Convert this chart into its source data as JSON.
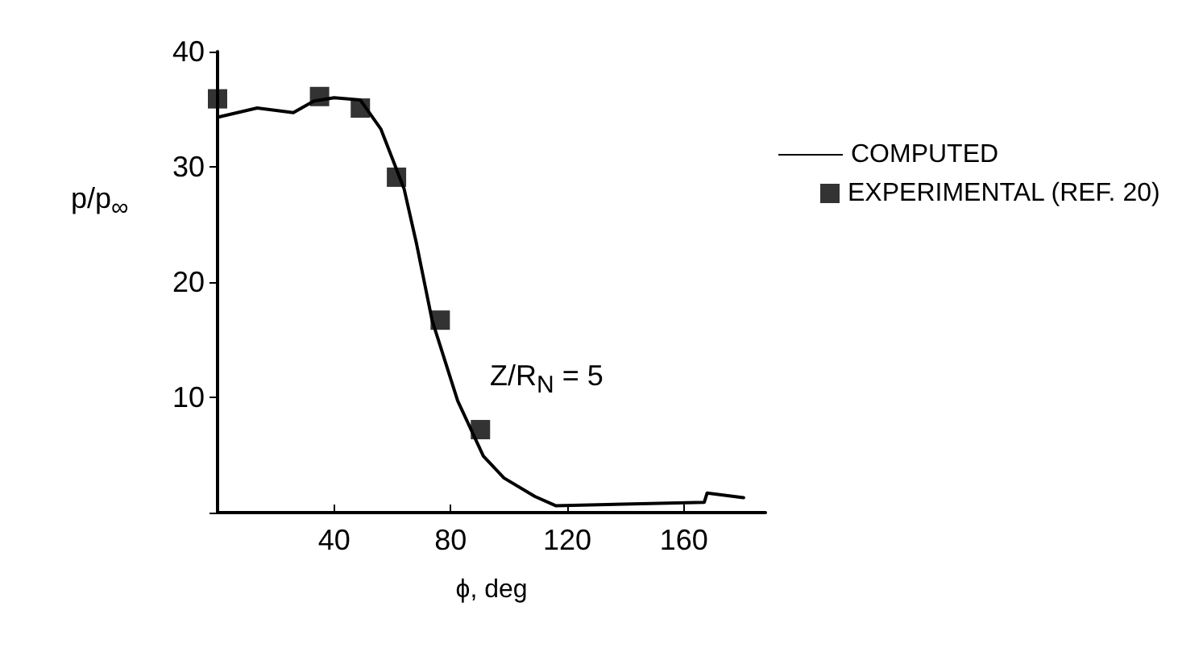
{
  "chart_data": {
    "type": "line",
    "xlabel": "ϕ, deg",
    "ylabel": "p/p$_{∞}$",
    "xlim": [
      0,
      188
    ],
    "ylim": [
      0,
      40
    ],
    "xticks": [
      {
        "value": 0,
        "label": null
      },
      40,
      80,
      120,
      160
    ],
    "yticks": [
      {
        "value": 0,
        "label": null
      },
      10,
      20,
      30,
      40
    ],
    "series": [
      {
        "name": "COMPUTED",
        "color": "#000000",
        "marker": "none",
        "line_style": "solid",
        "x": [
          0,
          13.6,
          26,
          33,
          40,
          49,
          56,
          64,
          68.3,
          73.6,
          82.4,
          91.2,
          98.3,
          108.9,
          116,
          167,
          168,
          180.5
        ],
        "values": [
          34.3,
          35.1,
          34.7,
          35.7,
          36,
          35.8,
          33.3,
          28.1,
          23.3,
          16.7,
          9.7,
          4.9,
          3.0,
          1.4,
          0.6,
          0.9,
          1.7,
          1.3
        ]
      },
      {
        "name": "EXPERIMENTAL (REF. 20)",
        "type": "scatter",
        "color": "#000000",
        "marker": "square",
        "x": [
          0,
          35,
          49,
          61.4,
          76.4,
          90.2
        ],
        "values": [
          35.9,
          36.1,
          35.1,
          29.1,
          16.7,
          7.2
        ]
      }
    ],
    "annotations": [
      "Z/R$_{N}$ = 5"
    ],
    "grid": false,
    "legend": "right"
  }
}
